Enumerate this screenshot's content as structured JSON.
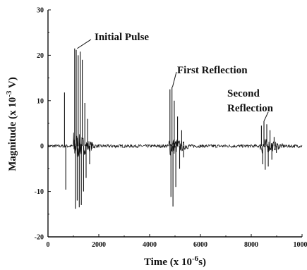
{
  "chart_data": {
    "type": "line",
    "title": "",
    "xlabel_parts": [
      "Time (x 10",
      "-6",
      "s)"
    ],
    "ylabel_parts": [
      "Magnitude (x 10",
      "-3",
      " V)"
    ],
    "xlim": [
      0,
      10000
    ],
    "ylim": [
      -20,
      30
    ],
    "x_ticks": [
      0,
      2000,
      4000,
      6000,
      8000,
      10000
    ],
    "x_tick_labels": [
      "0",
      "2000",
      "4000",
      "6000",
      "8000",
      "10000"
    ],
    "y_ticks": [
      -20,
      -10,
      0,
      10,
      20,
      30
    ],
    "y_tick_labels": [
      "-20",
      "-10",
      "0",
      "10",
      "20",
      "30"
    ],
    "grid": false,
    "series": [
      {
        "color": "#111111",
        "spikes": [
          {
            "x": 650,
            "y": 11.8
          },
          {
            "x": 700,
            "y": -9.6
          },
          {
            "x": 1050,
            "y": 21.5
          },
          {
            "x": 1080,
            "y": -13.8
          },
          {
            "x": 1110,
            "y": 21.2
          },
          {
            "x": 1150,
            "y": -12.0
          },
          {
            "x": 1190,
            "y": 20.0
          },
          {
            "x": 1230,
            "y": -13.5
          },
          {
            "x": 1270,
            "y": 20.8
          },
          {
            "x": 1310,
            "y": -13.0
          },
          {
            "x": 1350,
            "y": 19.0
          },
          {
            "x": 1400,
            "y": -10.0
          },
          {
            "x": 1450,
            "y": 9.5
          },
          {
            "x": 1500,
            "y": -7.0
          },
          {
            "x": 1560,
            "y": 6.0
          },
          {
            "x": 1640,
            "y": -4.0
          },
          {
            "x": 4800,
            "y": 12.5
          },
          {
            "x": 4840,
            "y": -11.2
          },
          {
            "x": 4880,
            "y": 13.0
          },
          {
            "x": 4920,
            "y": -13.3
          },
          {
            "x": 4970,
            "y": 10.0
          },
          {
            "x": 5030,
            "y": -9.0
          },
          {
            "x": 5100,
            "y": 6.5
          },
          {
            "x": 5180,
            "y": -5.0
          },
          {
            "x": 5260,
            "y": 3.5
          },
          {
            "x": 5340,
            "y": -2.5
          },
          {
            "x": 8400,
            "y": 4.5
          },
          {
            "x": 8450,
            "y": -4.0
          },
          {
            "x": 8500,
            "y": 5.5
          },
          {
            "x": 8550,
            "y": -5.2
          },
          {
            "x": 8610,
            "y": 4.8
          },
          {
            "x": 8670,
            "y": -4.5
          },
          {
            "x": 8740,
            "y": 3.5
          },
          {
            "x": 8810,
            "y": -3.0
          },
          {
            "x": 8900,
            "y": 2.0
          },
          {
            "x": 8990,
            "y": -1.5
          }
        ]
      }
    ],
    "annotations": [
      {
        "text": "Initial Pulse",
        "x": 1150,
        "y": 21.5
      },
      {
        "text": "First Reflection",
        "x": 4900,
        "y": 13.0
      },
      {
        "text_lines": [
          "Second",
          "Reflection"
        ],
        "x": 8500,
        "y": 5.5
      }
    ]
  }
}
